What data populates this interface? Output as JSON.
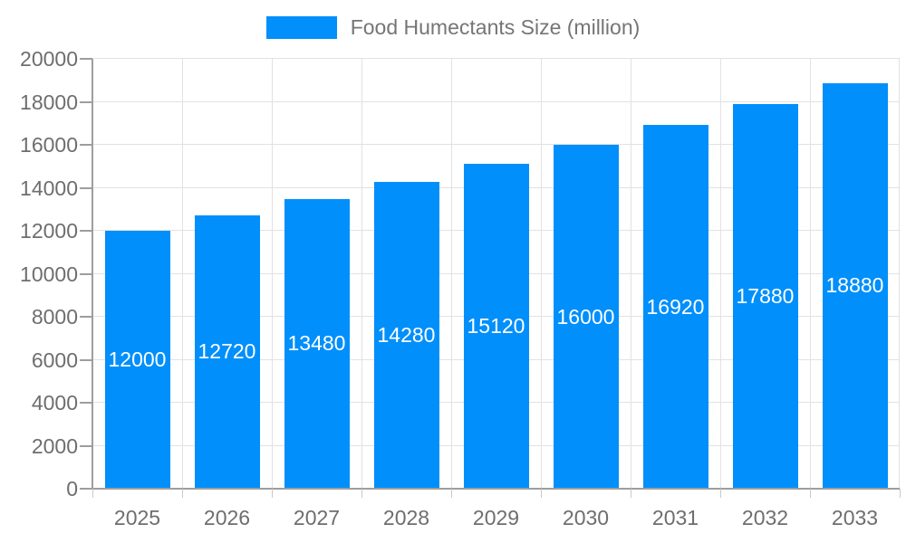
{
  "legend": {
    "label": "Food Humectants Size (million)"
  },
  "chart_data": {
    "type": "bar",
    "title": "Food Humectants Size (million)",
    "categories": [
      "2025",
      "2026",
      "2027",
      "2028",
      "2029",
      "2030",
      "2031",
      "2032",
      "2033"
    ],
    "series": [
      {
        "name": "Food Humectants Size (million)",
        "values": [
          12000,
          12720,
          13480,
          14280,
          15120,
          16000,
          16920,
          17880,
          18880
        ]
      }
    ],
    "value_labels": [
      "12000",
      "12720",
      "13480",
      "14280",
      "15120",
      "16000",
      "16920",
      "17880",
      "18880"
    ],
    "xlabel": "",
    "ylabel": "",
    "ylim": [
      0,
      20000
    ],
    "ytick_step": 2000,
    "yticks": [
      0,
      2000,
      4000,
      6000,
      8000,
      10000,
      12000,
      14000,
      16000,
      18000,
      20000
    ],
    "grid": true,
    "legend_position": "top-center",
    "colors": {
      "bar": "#008FFB",
      "bar_value_label": "#FFFFFF",
      "axis_line": "#9E9E9E",
      "gridline": "#E2E2E2",
      "tick_mark": "#9E9E9E",
      "boundary_tick": "#C9C9C9",
      "tick_label": "#6E6E6E",
      "legend_label": "#757575",
      "background": "#FFFFFF"
    }
  }
}
